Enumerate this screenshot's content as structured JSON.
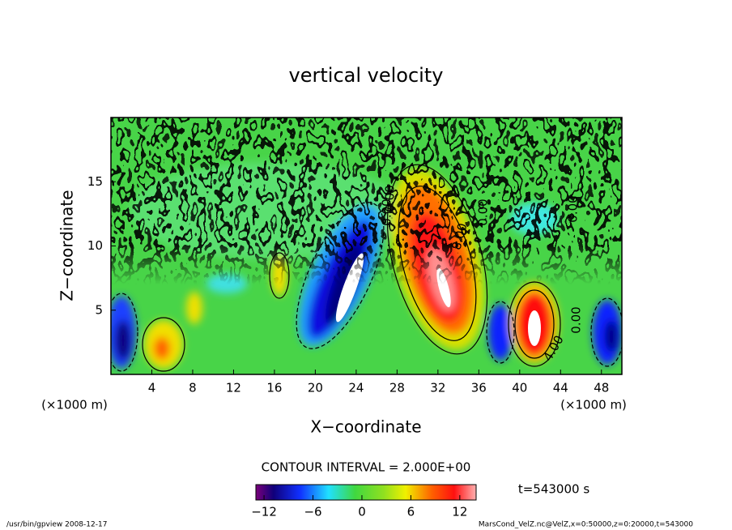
{
  "chart_data": {
    "type": "contour",
    "title": "vertical velocity",
    "x_label": "X−coordinate",
    "y_label": "Z−coordinate",
    "x_unit_left": "(×1000 m)",
    "x_unit_right": "(×1000 m)",
    "xlim": [
      0,
      50
    ],
    "xticks": [
      4,
      8,
      12,
      16,
      20,
      24,
      28,
      32,
      36,
      40,
      44,
      48
    ],
    "ylim": [
      0,
      20
    ],
    "yticks": [
      5,
      10,
      15
    ],
    "contour_interval": "CONTOUR INTERVAL = 2.000E+00",
    "time_label": "t=543000 s",
    "contour_labels": [
      "0.00",
      "0.00",
      "8.00",
      "0.00",
      "4.00",
      "0.00",
      "0.00"
    ],
    "colorbar": {
      "lim": [
        -13,
        14
      ],
      "ticks": [
        {
          "value": -12,
          "label": "−12"
        },
        {
          "value": -6,
          "label": "−6"
        },
        0,
        6,
        12
      ]
    },
    "footer_left": "/usr/bin/gpview   2008-12-17",
    "footer_right": "MarsCond_VelZ.nc@VelZ,x=0:50000,z=0:20000,t=543000"
  }
}
